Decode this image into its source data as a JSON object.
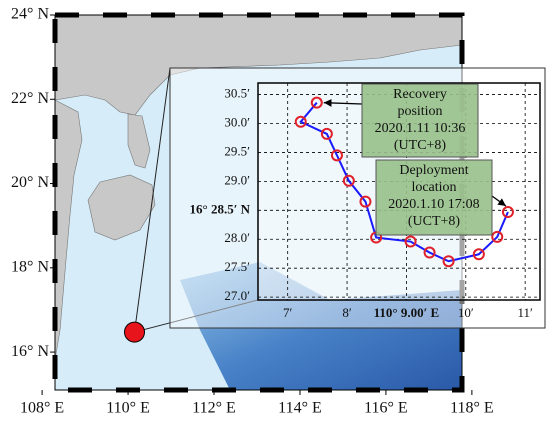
{
  "map": {
    "xlim": [
      108.3,
      117.77
    ],
    "ylim": [
      15.1,
      24
    ],
    "xticks": [
      {
        "value": 108,
        "label": "108° E"
      },
      {
        "value": 110,
        "label": "110° E"
      },
      {
        "value": 112,
        "label": "112° E"
      },
      {
        "value": 114,
        "label": "114° E"
      },
      {
        "value": 116,
        "label": "116° E"
      },
      {
        "value": 118,
        "label": "118° E"
      }
    ],
    "yticks": [
      {
        "value": 16,
        "label": "16° N"
      },
      {
        "value": 18,
        "label": "18° N"
      },
      {
        "value": 20,
        "label": "20° N"
      },
      {
        "value": 22,
        "label": "22° N"
      },
      {
        "value": 24,
        "label": "24° N"
      }
    ],
    "site": {
      "lon": 110.15,
      "lat": 16.475,
      "color": "#e8141c"
    }
  },
  "inset": {
    "xlim": [
      6.5,
      11.25
    ],
    "ylim": [
      26.95,
      30.7
    ],
    "grid": true,
    "xticks": [
      {
        "value": 7,
        "label": "7′"
      },
      {
        "value": 8,
        "label": "8′"
      },
      {
        "value": 9,
        "label": "110° 9.00′ E"
      },
      {
        "value": 10,
        "label": "10′"
      },
      {
        "value": 11,
        "label": "11′"
      }
    ],
    "yticks": [
      {
        "value": 27.0,
        "label": "27.0′"
      },
      {
        "value": 27.5,
        "label": "27.5′"
      },
      {
        "value": 28.0,
        "label": "28.0′"
      },
      {
        "value": 28.5,
        "label": "16° 28.5′ N",
        "color": "#e8141c"
      },
      {
        "value": 29.0,
        "label": "29.0′"
      },
      {
        "value": 29.5,
        "label": "29.5′"
      },
      {
        "value": 30.0,
        "label": "30.0′"
      },
      {
        "value": 30.5,
        "label": "30.5′"
      }
    ],
    "track": {
      "color": "#1a1aff",
      "marker_color": "#e0202a",
      "x": [
        7.49,
        7.22,
        7.66,
        7.83,
        8.03,
        8.31,
        8.49,
        9.07,
        9.39,
        9.71,
        10.22,
        10.53,
        10.71
      ],
      "y": [
        30.36,
        30.03,
        29.82,
        29.45,
        29.01,
        28.65,
        28.03,
        27.96,
        27.77,
        27.62,
        27.74,
        28.04,
        28.47
      ]
    },
    "annotations": [
      {
        "lines": [
          "Recovery",
          "position",
          "2020.1.11 10:36",
          "(UTC+8)"
        ],
        "point": 0
      },
      {
        "lines": [
          "Deployment",
          "location",
          "2020.1.10 17:08",
          "(UCT+8)"
        ],
        "point": 12
      }
    ]
  }
}
